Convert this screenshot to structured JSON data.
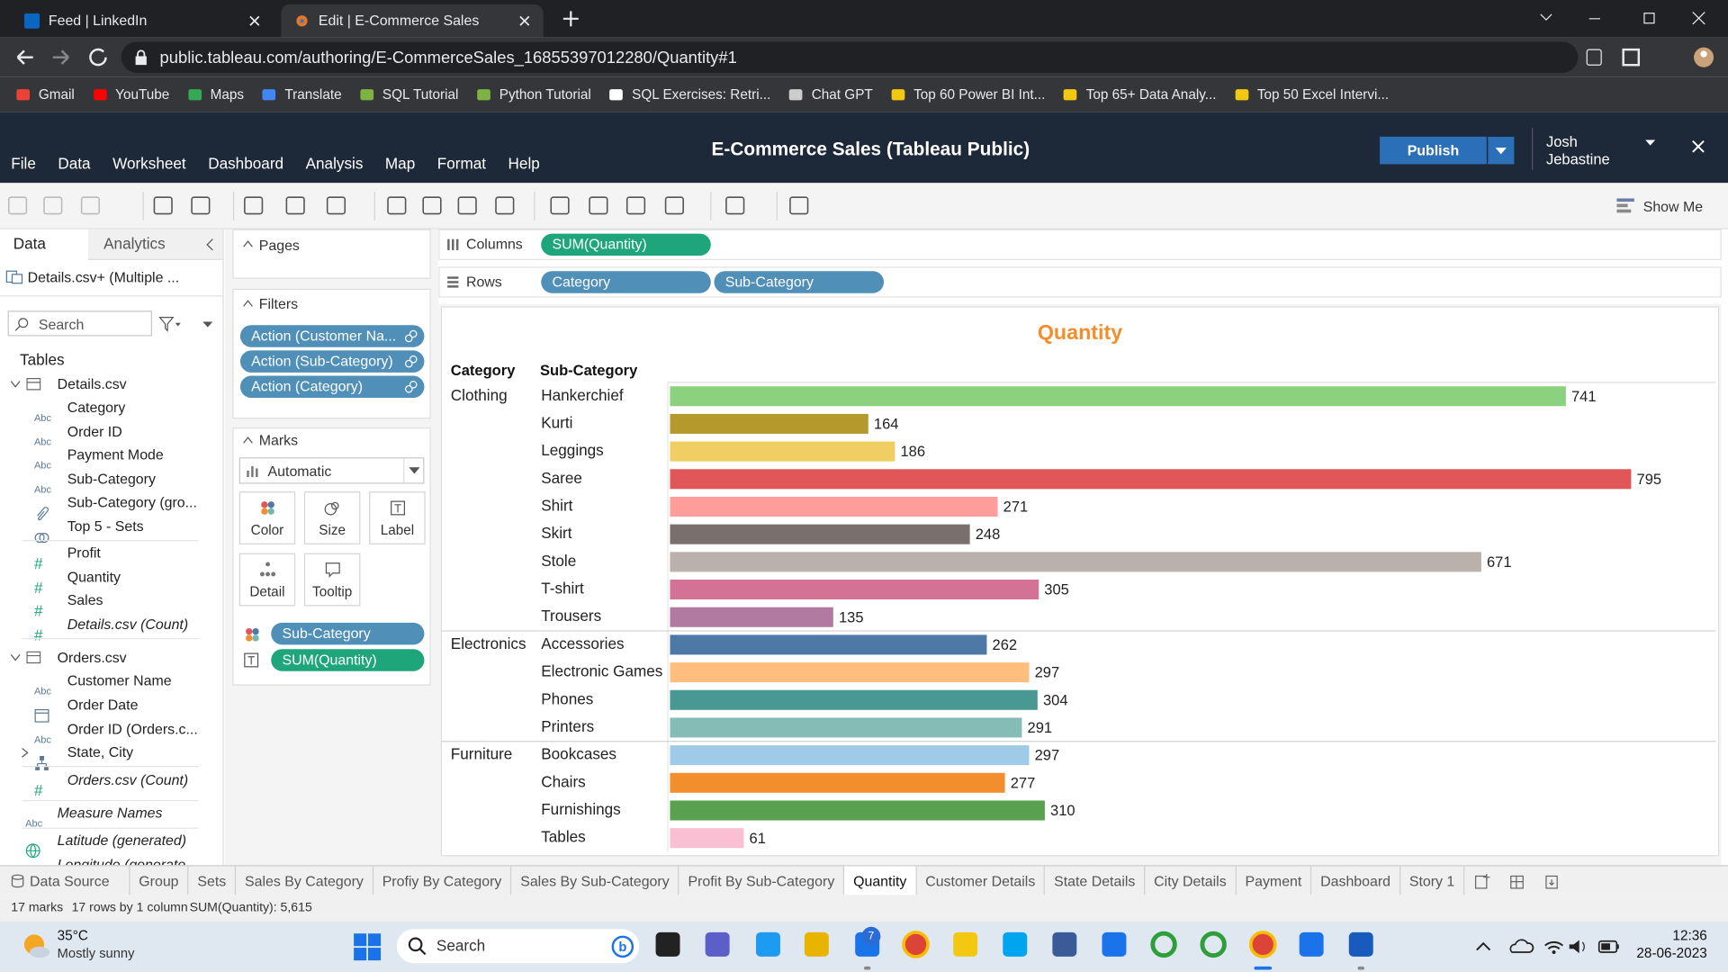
{
  "browser": {
    "tabs": [
      "Feed | LinkedIn",
      "Edit | E-Commerce Sales"
    ],
    "url": "public.tableau.com/authoring/E-CommerceSales_16855397012280/Quantity#1",
    "bookmarks": [
      "Gmail",
      "YouTube",
      "Maps",
      "Translate",
      "SQL Tutorial",
      "Python Tutorial",
      "SQL Exercises: Retri...",
      "Chat GPT",
      "Top 60 Power BI Int...",
      "Top 65+ Data Analy...",
      "Top 50 Excel Intervi..."
    ]
  },
  "app": {
    "title": "E-Commerce Sales (Tableau Public)",
    "menu": [
      "File",
      "Data",
      "Worksheet",
      "Dashboard",
      "Analysis",
      "Map",
      "Format",
      "Help"
    ],
    "publish": "Publish",
    "user": "Josh Jebastine",
    "show_me": "Show Me"
  },
  "data_pane": {
    "tabs": [
      "Data",
      "Analytics"
    ],
    "source": "Details.csv+ (Multiple ...",
    "search": "Search",
    "tables_heading": "Tables",
    "icon_labels": {
      "abc": "Abc",
      "measure": "#"
    },
    "tables": [
      {
        "name": "Details.csv",
        "fields": [
          {
            "label": "Category",
            "kind": "abc"
          },
          {
            "label": "Order ID",
            "kind": "abc"
          },
          {
            "label": "Payment Mode",
            "kind": "abc"
          },
          {
            "label": "Sub-Category",
            "kind": "abc"
          },
          {
            "label": "Sub-Category (gro...",
            "kind": "group"
          },
          {
            "label": "Top 5 - Sets",
            "kind": "set"
          },
          {
            "label": "Profit",
            "kind": "measure"
          },
          {
            "label": "Quantity",
            "kind": "measure"
          },
          {
            "label": "Sales",
            "kind": "measure"
          },
          {
            "label": "Details.csv (Count)",
            "kind": "measure",
            "italic": true
          }
        ]
      },
      {
        "name": "Orders.csv",
        "fields": [
          {
            "label": "Customer Name",
            "kind": "abc"
          },
          {
            "label": "Order Date",
            "kind": "date"
          },
          {
            "label": "Order ID (Orders.c...",
            "kind": "abc"
          },
          {
            "label": "State, City",
            "kind": "hierarchy"
          },
          {
            "label": "Orders.csv (Count)",
            "kind": "measure",
            "italic": true
          }
        ]
      }
    ],
    "extra_fields": [
      {
        "label": "Measure Names",
        "kind": "abc",
        "italic": true
      },
      {
        "label": "Latitude (generated)",
        "kind": "geo",
        "italic": true
      },
      {
        "label": "Longitude (generate...",
        "kind": "geo",
        "italic": true
      }
    ]
  },
  "shelves": {
    "pages": "Pages",
    "filters_title": "Filters",
    "filters": [
      "Action (Customer Na...",
      "Action (Sub-Category)",
      "Action (Category)"
    ],
    "marks_title": "Marks",
    "mark_type": "Automatic",
    "mark_buttons": [
      "Color",
      "Size",
      "Label",
      "Detail",
      "Tooltip"
    ],
    "mark_pills": [
      "Sub-Category",
      "SUM(Quantity)"
    ],
    "columns_label": "Columns",
    "columns": [
      "SUM(Quantity)"
    ],
    "rows_label": "Rows",
    "rows": [
      "Category",
      "Sub-Category"
    ]
  },
  "chart_data": {
    "type": "bar",
    "title": "Quantity",
    "title_color": "#f28e2b",
    "header": [
      "Category",
      "Sub-Category"
    ],
    "groups": [
      "Clothing",
      null,
      null,
      null,
      null,
      null,
      null,
      null,
      null,
      "Electronics",
      null,
      null,
      null,
      "Furniture",
      null,
      null,
      null
    ],
    "categories": [
      "Hankerchief",
      "Kurti",
      "Leggings",
      "Saree",
      "Shirt",
      "Skirt",
      "Stole",
      "T-shirt",
      "Trousers",
      "Accessories",
      "Electronic Games",
      "Phones",
      "Printers",
      "Bookcases",
      "Chairs",
      "Furnishings",
      "Tables"
    ],
    "values": [
      741,
      164,
      186,
      795,
      271,
      248,
      671,
      305,
      135,
      262,
      297,
      304,
      291,
      297,
      277,
      310,
      61
    ],
    "colors": [
      "#8cd17d",
      "#b6992d",
      "#f1ce63",
      "#e15759",
      "#ff9d9a",
      "#79706e",
      "#bab0ac",
      "#d37295",
      "#b07aa1",
      "#4e79a7",
      "#ffbe7d",
      "#499894",
      "#86bcb6",
      "#a0cbe8",
      "#f28e2b",
      "#59a14f",
      "#fabfd2"
    ]
  },
  "sheet_tabs": [
    "Data Source",
    "Group",
    "Sets",
    "Sales By Category",
    "Profiy By Category",
    "Sales By Sub-Category",
    "Profit By Sub-Category",
    "Quantity",
    "Customer Details",
    "State Details",
    "City Details",
    "Payment",
    "Dashboard",
    "Story 1"
  ],
  "active_sheet": "Quantity",
  "status": [
    "17 marks",
    "17 rows by 1 column",
    "SUM(Quantity): 5,615"
  ],
  "taskbar": {
    "temperature": "35°C",
    "weather": "Mostly sunny",
    "search": "Search",
    "badge": "7",
    "time": "12:36",
    "date": "28-06-2023"
  }
}
